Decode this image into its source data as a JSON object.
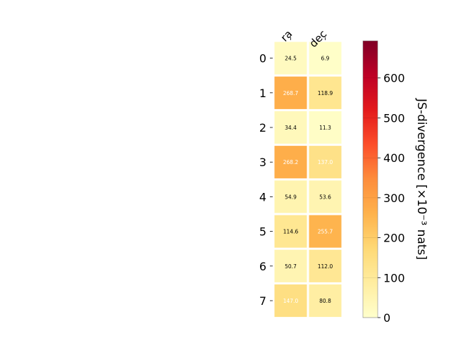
{
  "chart_data": {
    "type": "heatmap",
    "columns": [
      "ra",
      "dec"
    ],
    "rows": [
      "0",
      "1",
      "2",
      "3",
      "4",
      "5",
      "6",
      "7"
    ],
    "values": [
      [
        24.5,
        6.9
      ],
      [
        268.7,
        118.9
      ],
      [
        34.4,
        11.3
      ],
      [
        268.2,
        137.0
      ],
      [
        54.9,
        53.6
      ],
      [
        114.6,
        255.7
      ],
      [
        50.7,
        112.0
      ],
      [
        147.0,
        80.8
      ]
    ],
    "value_labels": [
      [
        "24.5",
        "6.9"
      ],
      [
        "268.7",
        "118.9"
      ],
      [
        "34.4",
        "11.3"
      ],
      [
        "268.2",
        "137.0"
      ],
      [
        "54.9",
        "53.6"
      ],
      [
        "114.6",
        "255.7"
      ],
      [
        "50.7",
        "112.0"
      ],
      [
        "147.0",
        "80.8"
      ]
    ],
    "colorbar": {
      "label": "JS-divergence [×10⁻³ nats]",
      "ticks": [
        0,
        100,
        200,
        300,
        400,
        500,
        600
      ],
      "range": [
        0,
        693
      ],
      "colormap": "YlOrRd",
      "colormap_stops": [
        "#ffffcc",
        "#ffeda0",
        "#fed976",
        "#feb24c",
        "#fd8d3c",
        "#fc4e2a",
        "#e31a1c",
        "#bd0026",
        "#800026"
      ]
    },
    "cell_text_colors": {
      "dark": "#000000",
      "light": "#ffffff"
    },
    "grid": false
  }
}
